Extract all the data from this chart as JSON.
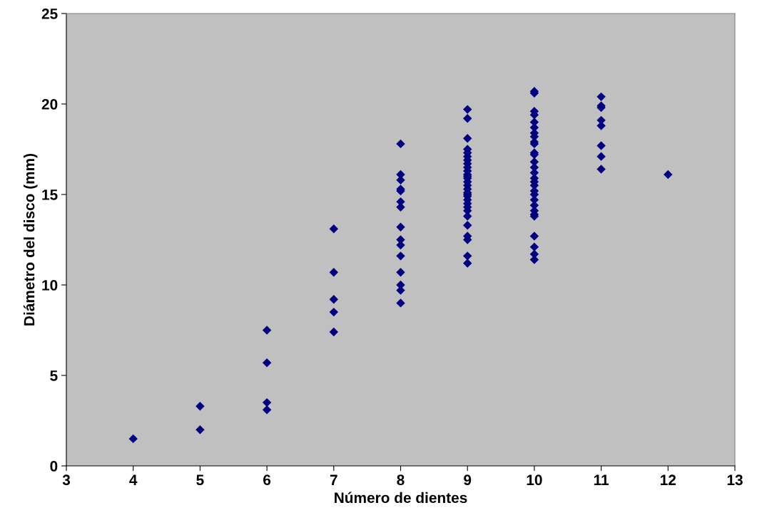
{
  "chart_data": {
    "type": "scatter",
    "xlabel": "Número de dientes",
    "ylabel": "Diámetro del disco (mm)",
    "xlim": [
      3,
      13
    ],
    "xticks": [
      3,
      4,
      5,
      6,
      7,
      8,
      9,
      10,
      11,
      12,
      13
    ],
    "ylim": [
      0,
      25
    ],
    "yticks": [
      0,
      5,
      10,
      15,
      20,
      25
    ],
    "grid": false,
    "marker": "diamond",
    "series": [
      {
        "color": "#000080",
        "x": [
          4,
          5,
          5,
          6,
          6,
          6,
          6,
          7,
          7,
          7,
          7,
          7,
          8,
          8,
          8,
          8,
          8,
          8,
          8,
          8,
          8,
          8,
          8,
          8,
          8,
          8,
          8,
          9,
          9,
          9,
          9,
          9,
          9,
          9,
          9,
          9,
          9,
          9,
          9,
          9,
          9,
          9,
          9,
          9,
          9,
          9,
          9,
          9,
          9,
          9,
          9,
          9,
          9,
          9,
          9,
          9,
          10,
          10,
          10,
          10,
          10,
          10,
          10,
          10,
          10,
          10,
          10,
          10,
          10,
          10,
          10,
          10,
          10,
          10,
          10,
          10,
          10,
          10,
          10,
          10,
          10,
          10,
          10,
          10,
          10,
          11,
          11,
          11,
          11,
          11,
          11,
          11,
          11,
          12
        ],
        "values": [
          1.5,
          3.3,
          2.0,
          7.5,
          5.7,
          3.5,
          3.1,
          13.1,
          10.7,
          9.2,
          8.5,
          7.4,
          17.8,
          16.1,
          15.8,
          15.3,
          15.2,
          14.6,
          14.3,
          13.2,
          12.5,
          12.2,
          11.6,
          10.7,
          10.0,
          9.7,
          9.0,
          19.7,
          19.2,
          18.1,
          17.5,
          17.3,
          17.1,
          16.9,
          16.7,
          16.5,
          16.3,
          16.1,
          15.9,
          15.7,
          15.5,
          15.3,
          15.1,
          14.9,
          14.7,
          14.5,
          14.3,
          14.1,
          13.8,
          13.3,
          12.7,
          12.5,
          11.6,
          11.2,
          15.0,
          16.0,
          20.7,
          20.6,
          19.6,
          19.4,
          19.0,
          18.7,
          18.4,
          18.2,
          17.9,
          17.8,
          17.3,
          17.2,
          16.8,
          16.5,
          16.2,
          15.9,
          15.7,
          15.5,
          15.2,
          15.0,
          14.7,
          14.4,
          14.1,
          13.9,
          13.8,
          12.7,
          12.1,
          11.7,
          11.4,
          20.4,
          19.9,
          19.8,
          19.1,
          18.8,
          17.7,
          17.1,
          16.4,
          16.1
        ]
      }
    ]
  }
}
